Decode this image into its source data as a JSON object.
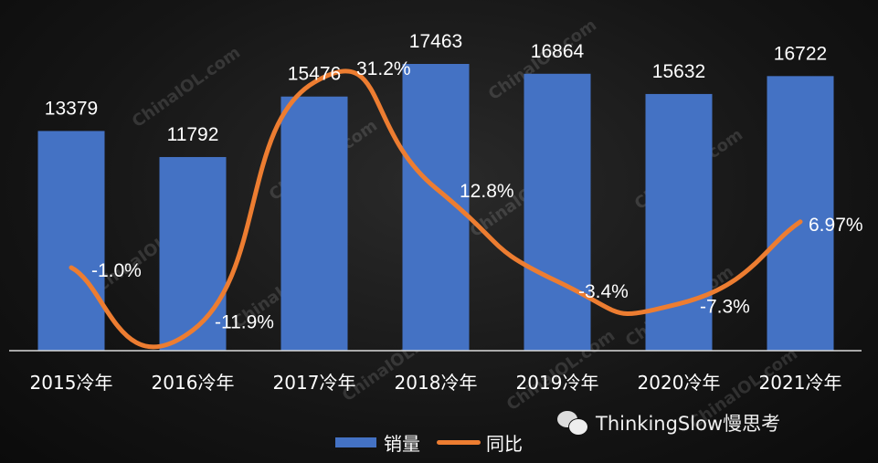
{
  "chart_data": {
    "type": "bar+line",
    "categories": [
      "2015冷年",
      "2016冷年",
      "2017冷年",
      "2018冷年",
      "2019冷年",
      "2020冷年",
      "2021冷年"
    ],
    "series": [
      {
        "name": "销量",
        "type": "bar",
        "color": "#4472c4",
        "values": [
          13379,
          11792,
          15476,
          17463,
          16864,
          15632,
          16722
        ],
        "labels": [
          "13379",
          "11792",
          "15476",
          "17463",
          "16864",
          "15632",
          "16722"
        ]
      },
      {
        "name": "同比",
        "type": "line",
        "smooth": true,
        "color": "#ed7d31",
        "values": [
          -1.0,
          -11.9,
          31.2,
          12.8,
          -3.4,
          -7.3,
          6.97
        ],
        "labels": [
          "-1.0%",
          "-11.9%",
          "31.2%",
          "12.8%",
          "-3.4%",
          "-7.3%",
          "6.97%"
        ]
      }
    ],
    "ylim_bar": [
      0,
      17463
    ],
    "grid": false,
    "legend": "bottom"
  },
  "legend": {
    "bar": "销量",
    "line": "同比"
  },
  "brand": {
    "text": "ThinkingSlow慢思考",
    "icon": "wechat-icon"
  },
  "watermark": "ChinaIOL.com"
}
